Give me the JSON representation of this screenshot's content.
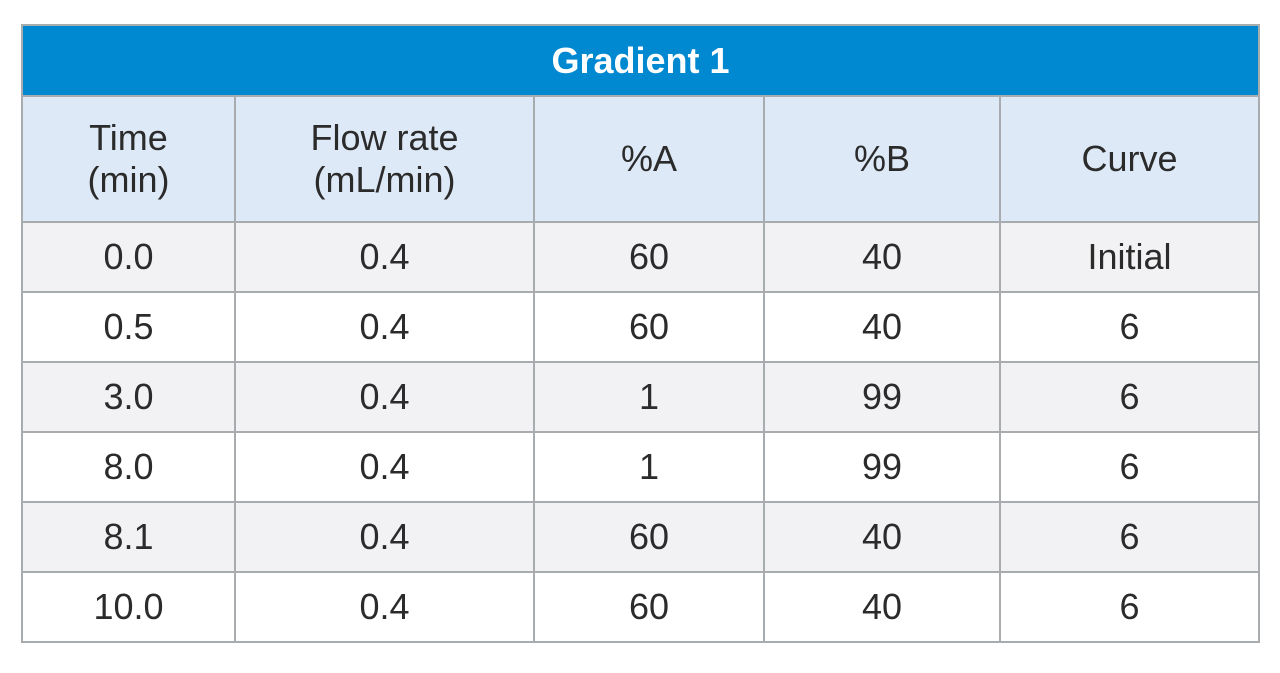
{
  "table": {
    "title": "Gradient 1",
    "headers": [
      {
        "line1": "Time",
        "line2": "(min)"
      },
      {
        "line1": "Flow rate",
        "line2": "(mL/min)"
      },
      {
        "line1": "%A",
        "line2": ""
      },
      {
        "line1": "%B",
        "line2": ""
      },
      {
        "line1": "Curve",
        "line2": ""
      }
    ],
    "rows": [
      [
        "0.0",
        "0.4",
        "60",
        "40",
        "Initial"
      ],
      [
        "0.5",
        "0.4",
        "60",
        "40",
        "6"
      ],
      [
        "3.0",
        "0.4",
        "1",
        "99",
        "6"
      ],
      [
        "8.0",
        "0.4",
        "1",
        "99",
        "6"
      ],
      [
        "8.1",
        "0.4",
        "60",
        "40",
        "6"
      ],
      [
        "10.0",
        "0.4",
        "60",
        "40",
        "6"
      ]
    ]
  },
  "colors": {
    "title_background": "#0088d1",
    "header_background": "#dde9f6",
    "row_alt_background": "#f2f2f4",
    "grid_line": "#a9acaf"
  }
}
